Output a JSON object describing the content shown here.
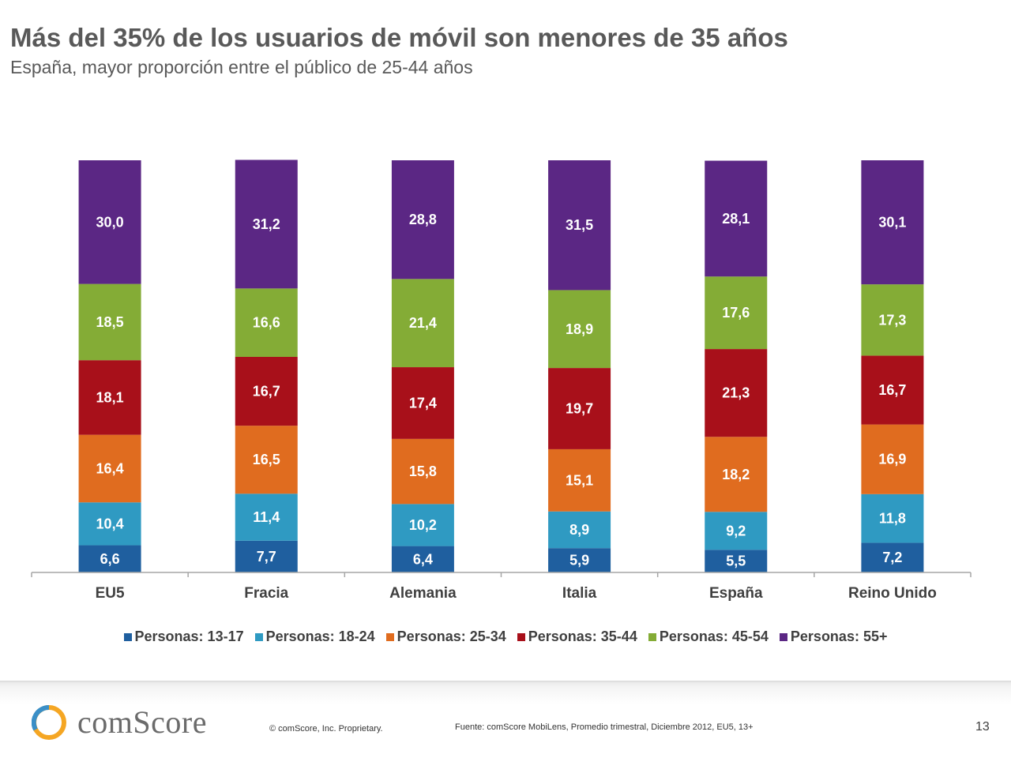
{
  "title": "Más del 35% de los usuarios de móvil son menores de 35 años",
  "subtitle": "España, mayor proporción entre el público de 25-44 años",
  "chart_data": {
    "type": "bar",
    "stacked": true,
    "categories": [
      "EU5",
      "Fracia",
      "Alemania",
      "Italia",
      "España",
      "Reino Unido"
    ],
    "series": [
      {
        "name": "Personas: 13-17",
        "color": "#1f5f9f",
        "values": [
          6.6,
          7.7,
          6.4,
          5.9,
          5.5,
          7.2
        ],
        "labels": [
          "6,6",
          "7,7",
          "6,4",
          "5,9",
          "5,5",
          "7,2"
        ]
      },
      {
        "name": "Personas: 18-24",
        "color": "#2f9ac2",
        "values": [
          10.4,
          11.4,
          10.2,
          8.9,
          9.2,
          11.8
        ],
        "labels": [
          "10,4",
          "11,4",
          "10,2",
          "8,9",
          "9,2",
          "11,8"
        ]
      },
      {
        "name": "Personas: 25-34",
        "color": "#e06c1f",
        "values": [
          16.4,
          16.5,
          15.8,
          15.1,
          18.2,
          16.9
        ],
        "labels": [
          "16,4",
          "16,5",
          "15,8",
          "15,1",
          "18,2",
          "16,9"
        ]
      },
      {
        "name": "Personas: 35-44",
        "color": "#a8101a",
        "values": [
          18.1,
          16.7,
          17.4,
          19.7,
          21.3,
          16.7
        ],
        "labels": [
          "18,1",
          "16,7",
          "17,4",
          "19,7",
          "21,3",
          "16,7"
        ]
      },
      {
        "name": "Personas: 45-54",
        "color": "#84ac36",
        "values": [
          18.5,
          16.6,
          21.4,
          18.9,
          17.6,
          17.3
        ],
        "labels": [
          "18,5",
          "16,6",
          "21,4",
          "18,9",
          "17,6",
          "17,3"
        ]
      },
      {
        "name": "Personas: 55+",
        "color": "#5b2784",
        "values": [
          30.0,
          31.2,
          28.8,
          31.5,
          28.1,
          30.1
        ],
        "labels": [
          "30,0",
          "31,2",
          "28,8",
          "31,5",
          "28,1",
          "30,1"
        ]
      }
    ],
    "ylim": [
      0,
      100
    ],
    "grid": false,
    "legend_position": "bottom"
  },
  "footer": {
    "logo_text": "comScore",
    "copyright": "© comScore, Inc.    Proprietary.",
    "source": "Fuente:  comScore MobiLens,   Promedio trimestral,  Diciembre 2012, EU5, 13+",
    "page_number": "13"
  }
}
